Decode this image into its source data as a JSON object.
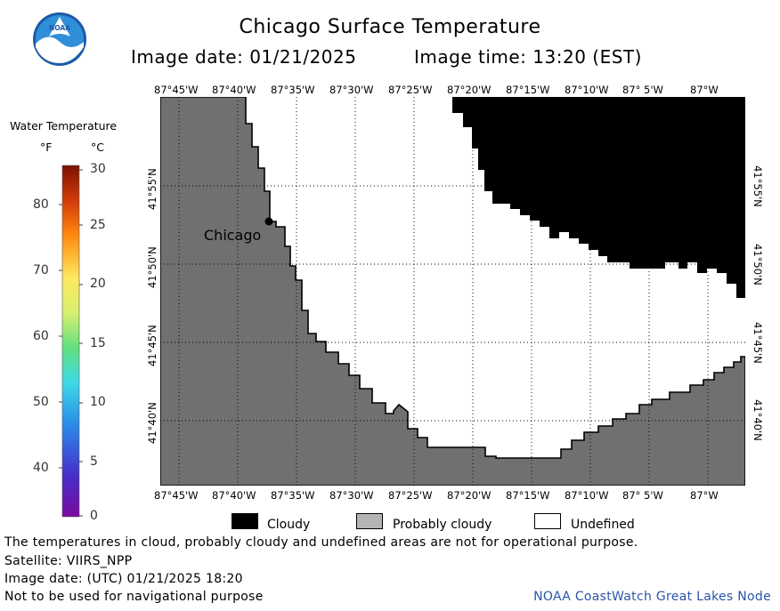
{
  "header": {
    "logo_text": "NOAA",
    "title": "Chicago Surface Temperature",
    "image_date": "Image date: 01/21/2025",
    "image_time": "Image time: 13:20 (EST)"
  },
  "colorbar": {
    "title": "Water Temperature",
    "unit_f": "°F",
    "unit_c": "°C",
    "f_ticks": [
      "80",
      "70",
      "60",
      "50",
      "40"
    ],
    "c_ticks": [
      "30",
      "25",
      "20",
      "15",
      "10",
      "5",
      "0"
    ]
  },
  "axes": {
    "lon_ticks": [
      "87°45'W",
      "87°40'W",
      "87°35'W",
      "87°30'W",
      "87°25'W",
      "87°20'W",
      "87°15'W",
      "87°10'W",
      "87° 5'W",
      "87°W"
    ],
    "lat_ticks": [
      "41°55'N",
      "41°50'N",
      "41°45'N",
      "41°40'N"
    ]
  },
  "map": {
    "city_label": "Chicago",
    "colors": {
      "land": "#707070",
      "cloudy": "#000000",
      "probably_cloudy": "#b4b4b4",
      "undefined": "#ffffff",
      "grid": "#000000"
    }
  },
  "key": {
    "cloudy": "Cloudy",
    "probably_cloudy": "Probably cloudy",
    "undefined": "Undefined"
  },
  "footer": {
    "disclaimer": "The temperatures in cloud, probably cloudy and undefined areas are not for operational purpose.",
    "satellite": "Satellite: VIIRS_NPP",
    "utc_date": "Image date: (UTC) 01/21/2025  18:20",
    "nav_warning": "Not to be used for navigational purpose",
    "credit": "NOAA CoastWatch Great Lakes Node"
  }
}
